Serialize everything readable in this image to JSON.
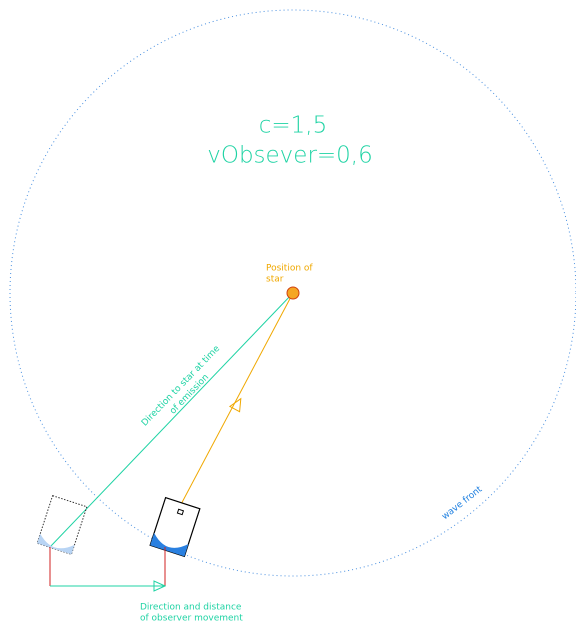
{
  "params": {
    "c": "c=1,5",
    "v": "vObsever=0,6"
  },
  "star_label": [
    "Position of",
    "star"
  ],
  "direction_label": [
    "Direction to star at time",
    "of emission"
  ],
  "wave_label": "wave front",
  "movement_label": [
    "Direction and distance",
    "of observer movement"
  ]
}
